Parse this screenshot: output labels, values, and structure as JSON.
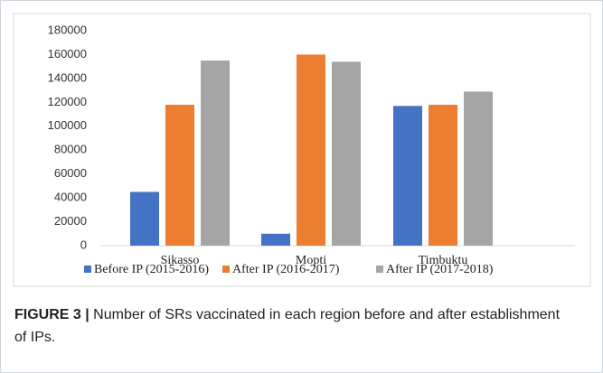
{
  "chart_data": {
    "type": "bar",
    "categories": [
      "Sikasso",
      "Mopti",
      "Timbuktu"
    ],
    "series": [
      {
        "name": "Before IP (2015-2016)",
        "color": "#4472c4",
        "values": [
          45000,
          10000,
          117000
        ]
      },
      {
        "name": "After IP (2016-2017)",
        "color": "#ed7d31",
        "values": [
          118000,
          160000,
          118000
        ]
      },
      {
        "name": "After IP (2017-2018)",
        "color": "#a5a5a5",
        "values": [
          155000,
          154000,
          129000
        ]
      }
    ],
    "ylim": [
      0,
      180000
    ],
    "yticks": [
      0,
      20000,
      40000,
      60000,
      80000,
      100000,
      120000,
      140000,
      160000,
      180000
    ],
    "grid": false,
    "legend": "bottom"
  },
  "caption": {
    "label": "FIGURE 3 |",
    "text": "Number of SRs vaccinated in each region before and after establishment of IPs."
  }
}
